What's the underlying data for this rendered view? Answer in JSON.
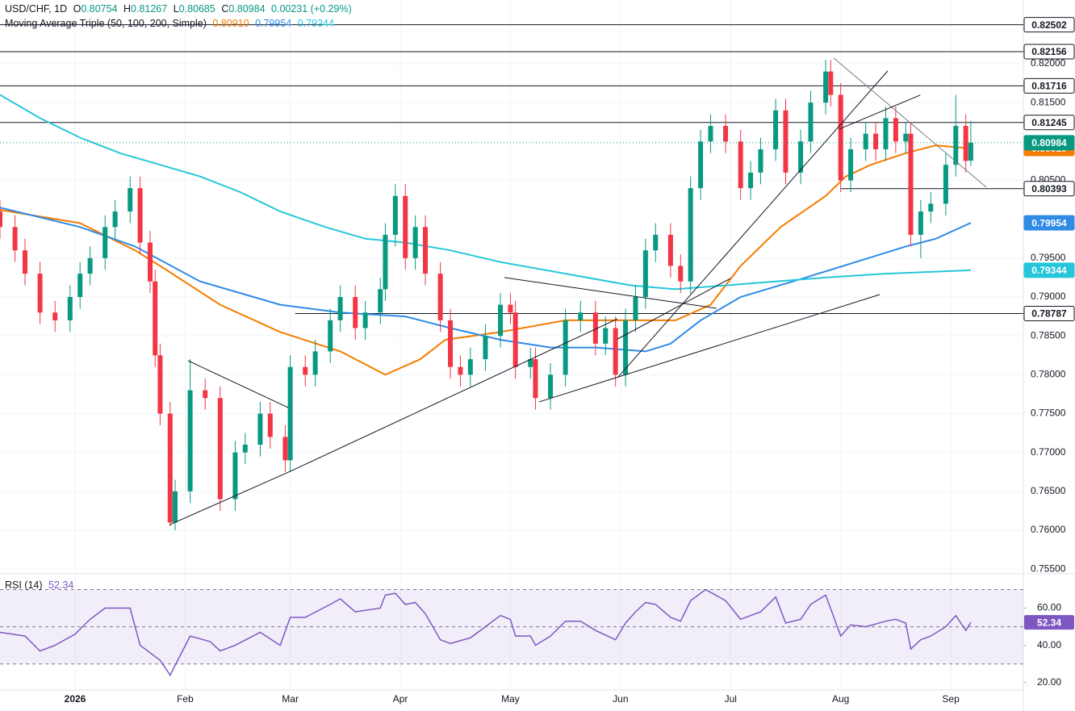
{
  "chart_data": [
    {
      "type": "candlestick",
      "title": "USD/CHF, 1D",
      "quote": [
        {
          "label": "O",
          "value": "0.80754"
        },
        {
          "label": "H",
          "value": "0.81267"
        },
        {
          "label": "L",
          "value": "0.80685"
        },
        {
          "label": "C",
          "value": "0.80984"
        }
      ],
      "change": "0.00231 (+0.29%)",
      "indicator": "Moving Average Triple (50, 100, 200, Simple)",
      "up_color": "#089981",
      "down_color": "#f23645",
      "x": [
        0,
        3,
        5,
        8,
        11,
        14,
        16,
        18,
        21,
        23,
        26,
        28,
        30,
        31,
        32,
        34,
        35,
        38,
        41,
        44,
        47,
        49,
        52,
        54,
        57,
        58,
        61,
        63,
        66,
        68,
        71,
        73,
        76,
        77,
        79,
        81,
        83,
        85,
        88,
        90,
        92,
        94,
        97,
        100,
        102,
        103,
        106,
        107,
        110,
        113,
        116,
        119,
        121,
        123,
        125,
        127,
        129,
        131,
        134,
        136,
        138,
        140,
        142,
        145,
        148,
        150,
        152,
        155,
        157,
        160,
        162,
        165,
        166,
        168,
        170,
        173,
        175,
        177,
        179,
        181,
        182,
        184,
        186,
        189,
        191,
        193,
        194
      ],
      "open": [
        0.801,
        0.799,
        0.796,
        0.793,
        0.788,
        0.787,
        0.79,
        0.793,
        0.795,
        0.799,
        0.801,
        0.804,
        0.797,
        0.792,
        0.7825,
        0.775,
        0.761,
        0.765,
        0.778,
        0.777,
        0.764,
        0.77,
        0.771,
        0.775,
        0.772,
        0.769,
        0.781,
        0.78,
        0.783,
        0.787,
        0.79,
        0.786,
        0.788,
        0.791,
        0.798,
        0.803,
        0.795,
        0.799,
        0.793,
        0.787,
        0.781,
        0.78,
        0.782,
        0.785,
        0.789,
        0.788,
        0.781,
        0.782,
        0.777,
        0.78,
        0.787,
        0.788,
        0.784,
        0.786,
        0.78,
        0.787,
        0.79,
        0.796,
        0.798,
        0.794,
        0.792,
        0.804,
        0.81,
        0.812,
        0.81,
        0.804,
        0.806,
        0.809,
        0.814,
        0.806,
        0.81,
        0.815,
        0.819,
        0.816,
        0.805,
        0.809,
        0.811,
        0.809,
        0.813,
        0.81,
        0.811,
        0.798,
        0.801,
        0.802,
        0.807,
        0.812,
        0.80754
      ],
      "high": [
        0.8025,
        0.8005,
        0.7975,
        0.7945,
        0.7895,
        0.7915,
        0.7945,
        0.7965,
        0.8005,
        0.8025,
        0.8055,
        0.8055,
        0.7985,
        0.7935,
        0.784,
        0.7765,
        0.7665,
        0.782,
        0.7795,
        0.7785,
        0.7715,
        0.7725,
        0.7765,
        0.7765,
        0.7735,
        0.7825,
        0.7825,
        0.7845,
        0.7885,
        0.7915,
        0.7915,
        0.7895,
        0.7925,
        0.7995,
        0.8045,
        0.8045,
        0.8005,
        0.8005,
        0.7945,
        0.7885,
        0.7825,
        0.7835,
        0.7865,
        0.7905,
        0.7905,
        0.7895,
        0.7835,
        0.7835,
        0.7815,
        0.7885,
        0.7895,
        0.7895,
        0.7875,
        0.7875,
        0.7885,
        0.7915,
        0.7975,
        0.7995,
        0.7995,
        0.7955,
        0.8055,
        0.8115,
        0.8135,
        0.8135,
        0.8115,
        0.8075,
        0.8105,
        0.8155,
        0.8155,
        0.8115,
        0.8165,
        0.8205,
        0.8205,
        0.8175,
        0.8105,
        0.8125,
        0.8125,
        0.8145,
        0.8145,
        0.8125,
        0.8125,
        0.8025,
        0.8035,
        0.8085,
        0.816,
        0.8135,
        0.81267
      ],
      "low": [
        0.7975,
        0.7945,
        0.7915,
        0.7865,
        0.7855,
        0.7855,
        0.7885,
        0.7915,
        0.7935,
        0.7975,
        0.7995,
        0.7955,
        0.7905,
        0.781,
        0.7735,
        0.7605,
        0.76,
        0.7635,
        0.7755,
        0.7625,
        0.7625,
        0.7685,
        0.7695,
        0.7705,
        0.7675,
        0.7675,
        0.7785,
        0.7785,
        0.7815,
        0.7855,
        0.7845,
        0.7845,
        0.7865,
        0.7895,
        0.7965,
        0.7935,
        0.7935,
        0.7915,
        0.7855,
        0.7795,
        0.7785,
        0.7785,
        0.7805,
        0.7835,
        0.7865,
        0.7795,
        0.7795,
        0.7755,
        0.7755,
        0.7785,
        0.7855,
        0.7825,
        0.7825,
        0.7785,
        0.7785,
        0.7855,
        0.7885,
        0.7945,
        0.7925,
        0.7905,
        0.7905,
        0.8025,
        0.8085,
        0.8085,
        0.8025,
        0.8025,
        0.8045,
        0.8075,
        0.8045,
        0.8045,
        0.8085,
        0.8135,
        0.8145,
        0.8035,
        0.8035,
        0.8075,
        0.8075,
        0.8075,
        0.8085,
        0.8085,
        0.7965,
        0.795,
        0.7995,
        0.8005,
        0.8055,
        0.806,
        0.80685
      ],
      "close": [
        0.799,
        0.796,
        0.793,
        0.788,
        0.787,
        0.79,
        0.793,
        0.795,
        0.799,
        0.801,
        0.804,
        0.797,
        0.792,
        0.7825,
        0.775,
        0.761,
        0.765,
        0.778,
        0.777,
        0.764,
        0.77,
        0.771,
        0.775,
        0.772,
        0.769,
        0.781,
        0.78,
        0.783,
        0.787,
        0.79,
        0.786,
        0.788,
        0.791,
        0.798,
        0.803,
        0.795,
        0.799,
        0.793,
        0.787,
        0.781,
        0.78,
        0.782,
        0.785,
        0.789,
        0.788,
        0.781,
        0.782,
        0.777,
        0.78,
        0.787,
        0.788,
        0.784,
        0.786,
        0.78,
        0.787,
        0.79,
        0.796,
        0.798,
        0.794,
        0.792,
        0.804,
        0.81,
        0.812,
        0.81,
        0.804,
        0.806,
        0.809,
        0.814,
        0.806,
        0.81,
        0.815,
        0.819,
        0.816,
        0.805,
        0.809,
        0.811,
        0.809,
        0.813,
        0.81,
        0.811,
        0.798,
        0.801,
        0.802,
        0.807,
        0.812,
        0.8075,
        0.80984
      ],
      "last_price": {
        "value": 0.80984,
        "label": "0.80984"
      },
      "series": [
        {
          "color": "#f57c00",
          "label": "0.80910",
          "x": [
            0,
            16,
            27,
            32,
            44,
            56,
            68,
            77,
            84,
            89,
            100,
            113,
            126,
            135,
            142,
            148,
            156,
            165,
            169,
            174,
            181,
            187,
            194
          ],
          "values": [
            0.8012,
            0.7995,
            0.796,
            0.794,
            0.789,
            0.7855,
            0.783,
            0.78,
            0.782,
            0.7845,
            0.7855,
            0.787,
            0.787,
            0.787,
            0.789,
            0.794,
            0.799,
            0.803,
            0.8055,
            0.807,
            0.8085,
            0.8095,
            0.8091
          ]
        },
        {
          "color": "#2f8be6",
          "label": "0.79954",
          "x": [
            0,
            16,
            27,
            40,
            56,
            68,
            81,
            90,
            100,
            110,
            119,
            129,
            134,
            140,
            148,
            161,
            171,
            181,
            187,
            194
          ],
          "values": [
            0.8015,
            0.799,
            0.7965,
            0.792,
            0.789,
            0.788,
            0.7875,
            0.786,
            0.7845,
            0.7835,
            0.7835,
            0.783,
            0.784,
            0.787,
            0.79,
            0.7925,
            0.7945,
            0.7965,
            0.7975,
            0.79954
          ]
        },
        {
          "color": "#26c6da",
          "label": "0.79344",
          "x": [
            0,
            8,
            16,
            24,
            32,
            40,
            48,
            56,
            65,
            73,
            81,
            90,
            100,
            113,
            126,
            135,
            145,
            155,
            165,
            177,
            194
          ],
          "values": [
            0.816,
            0.813,
            0.8105,
            0.8085,
            0.807,
            0.8055,
            0.8035,
            0.801,
            0.799,
            0.7975,
            0.797,
            0.796,
            0.7945,
            0.793,
            0.7915,
            0.791,
            0.7915,
            0.792,
            0.7925,
            0.793,
            0.79344
          ]
        }
      ],
      "levels": [
        {
          "value": 0.82502,
          "label": "0.82502",
          "start": 0
        },
        {
          "value": 0.82156,
          "label": "0.82156",
          "start": 0
        },
        {
          "value": 0.81716,
          "label": "0.81716",
          "start": 0
        },
        {
          "value": 0.81245,
          "label": "0.81245",
          "start": 0
        },
        {
          "value": 0.80393,
          "label": "0.80393",
          "start": 168
        },
        {
          "value": 0.78787,
          "label": "0.78787",
          "start": 59
        }
      ],
      "trendlines": [
        {
          "x1": 33.9,
          "y1": 0.76071,
          "x2": 57.6,
          "y2": 0.76746
        },
        {
          "x1": 37.6,
          "y1": 0.7818,
          "x2": 57.6,
          "y2": 0.77577
        },
        {
          "x1": 57.6,
          "y1": 0.76746,
          "x2": 123.4,
          "y2": 0.78719
        },
        {
          "x1": 123.4,
          "y1": 0.77961,
          "x2": 177.4,
          "y2": 0.81908
        },
        {
          "x1": 107.7,
          "y1": 0.7765,
          "x2": 175.8,
          "y2": 0.79031
        },
        {
          "x1": 100.8,
          "y1": 0.7925,
          "x2": 143.2,
          "y2": 0.78855
        },
        {
          "x1": 123.4,
          "y1": 0.78459,
          "x2": 146.0,
          "y2": 0.7924
        },
        {
          "x1": 166.6,
          "y1": 0.82074,
          "x2": 197.1,
          "y2": 0.80412
        },
        {
          "x1": 167.7,
          "y1": 0.8116,
          "x2": 183.9,
          "y2": 0.81597
        }
      ],
      "xlim": [
        0,
        204.5
      ],
      "xticks": [
        {
          "value": 15,
          "label": "2026"
        },
        {
          "value": 37,
          "label": "Feb"
        },
        {
          "value": 58,
          "label": "Mar"
        },
        {
          "value": 80,
          "label": "Apr"
        },
        {
          "value": 102,
          "label": "May"
        },
        {
          "value": 124,
          "label": "Jun"
        },
        {
          "value": 146,
          "label": "Jul"
        },
        {
          "value": 168,
          "label": "Aug"
        },
        {
          "value": 190,
          "label": "Sep"
        }
      ],
      "ylim": [
        0.7545,
        0.8282
      ],
      "yticks": [
        {
          "value": 0.82,
          "label": "0.82000"
        },
        {
          "value": 0.815,
          "label": "0.81500"
        },
        {
          "value": 0.805,
          "label": "0.80500"
        },
        {
          "value": 0.795,
          "label": "0.79500"
        },
        {
          "value": 0.79,
          "label": "0.79000"
        },
        {
          "value": 0.785,
          "label": "0.78500"
        },
        {
          "value": 0.78,
          "label": "0.78000"
        },
        {
          "value": 0.775,
          "label": "0.77500"
        },
        {
          "value": 0.77,
          "label": "0.77000"
        },
        {
          "value": 0.765,
          "label": "0.76500"
        },
        {
          "value": 0.76,
          "label": "0.76000"
        },
        {
          "value": 0.755,
          "label": "0.75500"
        }
      ],
      "grid": true
    },
    {
      "type": "line",
      "title": "RSI (14)",
      "color": "#7e57c2",
      "value_label": "52.34",
      "x": [
        0,
        5,
        8,
        11,
        15,
        18,
        21,
        26,
        28,
        32,
        34,
        38,
        42,
        44,
        47,
        52,
        56,
        58,
        61,
        66,
        68,
        71,
        76,
        77,
        79,
        81,
        83,
        85,
        88,
        90,
        94,
        97,
        100,
        102,
        103,
        106,
        107,
        110,
        113,
        116,
        119,
        123,
        125,
        127,
        129,
        131,
        134,
        136,
        138,
        141,
        145,
        148,
        150,
        152,
        155,
        157,
        160,
        162,
        165,
        168,
        170,
        173,
        177,
        179,
        181,
        182,
        184,
        186,
        189,
        191,
        193,
        194
      ],
      "values": [
        47,
        45,
        37,
        40,
        46,
        54,
        60,
        60,
        40,
        32,
        24,
        45,
        42,
        37,
        40,
        47,
        40,
        55,
        55,
        62,
        65,
        58,
        60,
        67,
        68,
        62,
        63,
        57,
        43,
        41,
        44,
        50,
        56,
        54,
        45,
        45,
        40,
        45,
        53,
        53,
        48,
        43,
        52,
        58,
        63,
        62,
        55,
        53,
        64,
        70,
        64,
        54,
        56,
        58,
        66,
        52,
        54,
        62,
        67,
        45,
        51,
        50,
        53,
        54,
        52,
        38,
        43,
        45,
        50,
        56,
        48,
        52.34
      ],
      "band": [
        30,
        70
      ],
      "midline": 50,
      "ylim": [
        16,
        78
      ],
      "yticks": [
        {
          "value": 60,
          "label": "60.00"
        },
        {
          "value": 40,
          "label": "40.00"
        },
        {
          "value": 20,
          "label": "20.00"
        }
      ]
    }
  ]
}
